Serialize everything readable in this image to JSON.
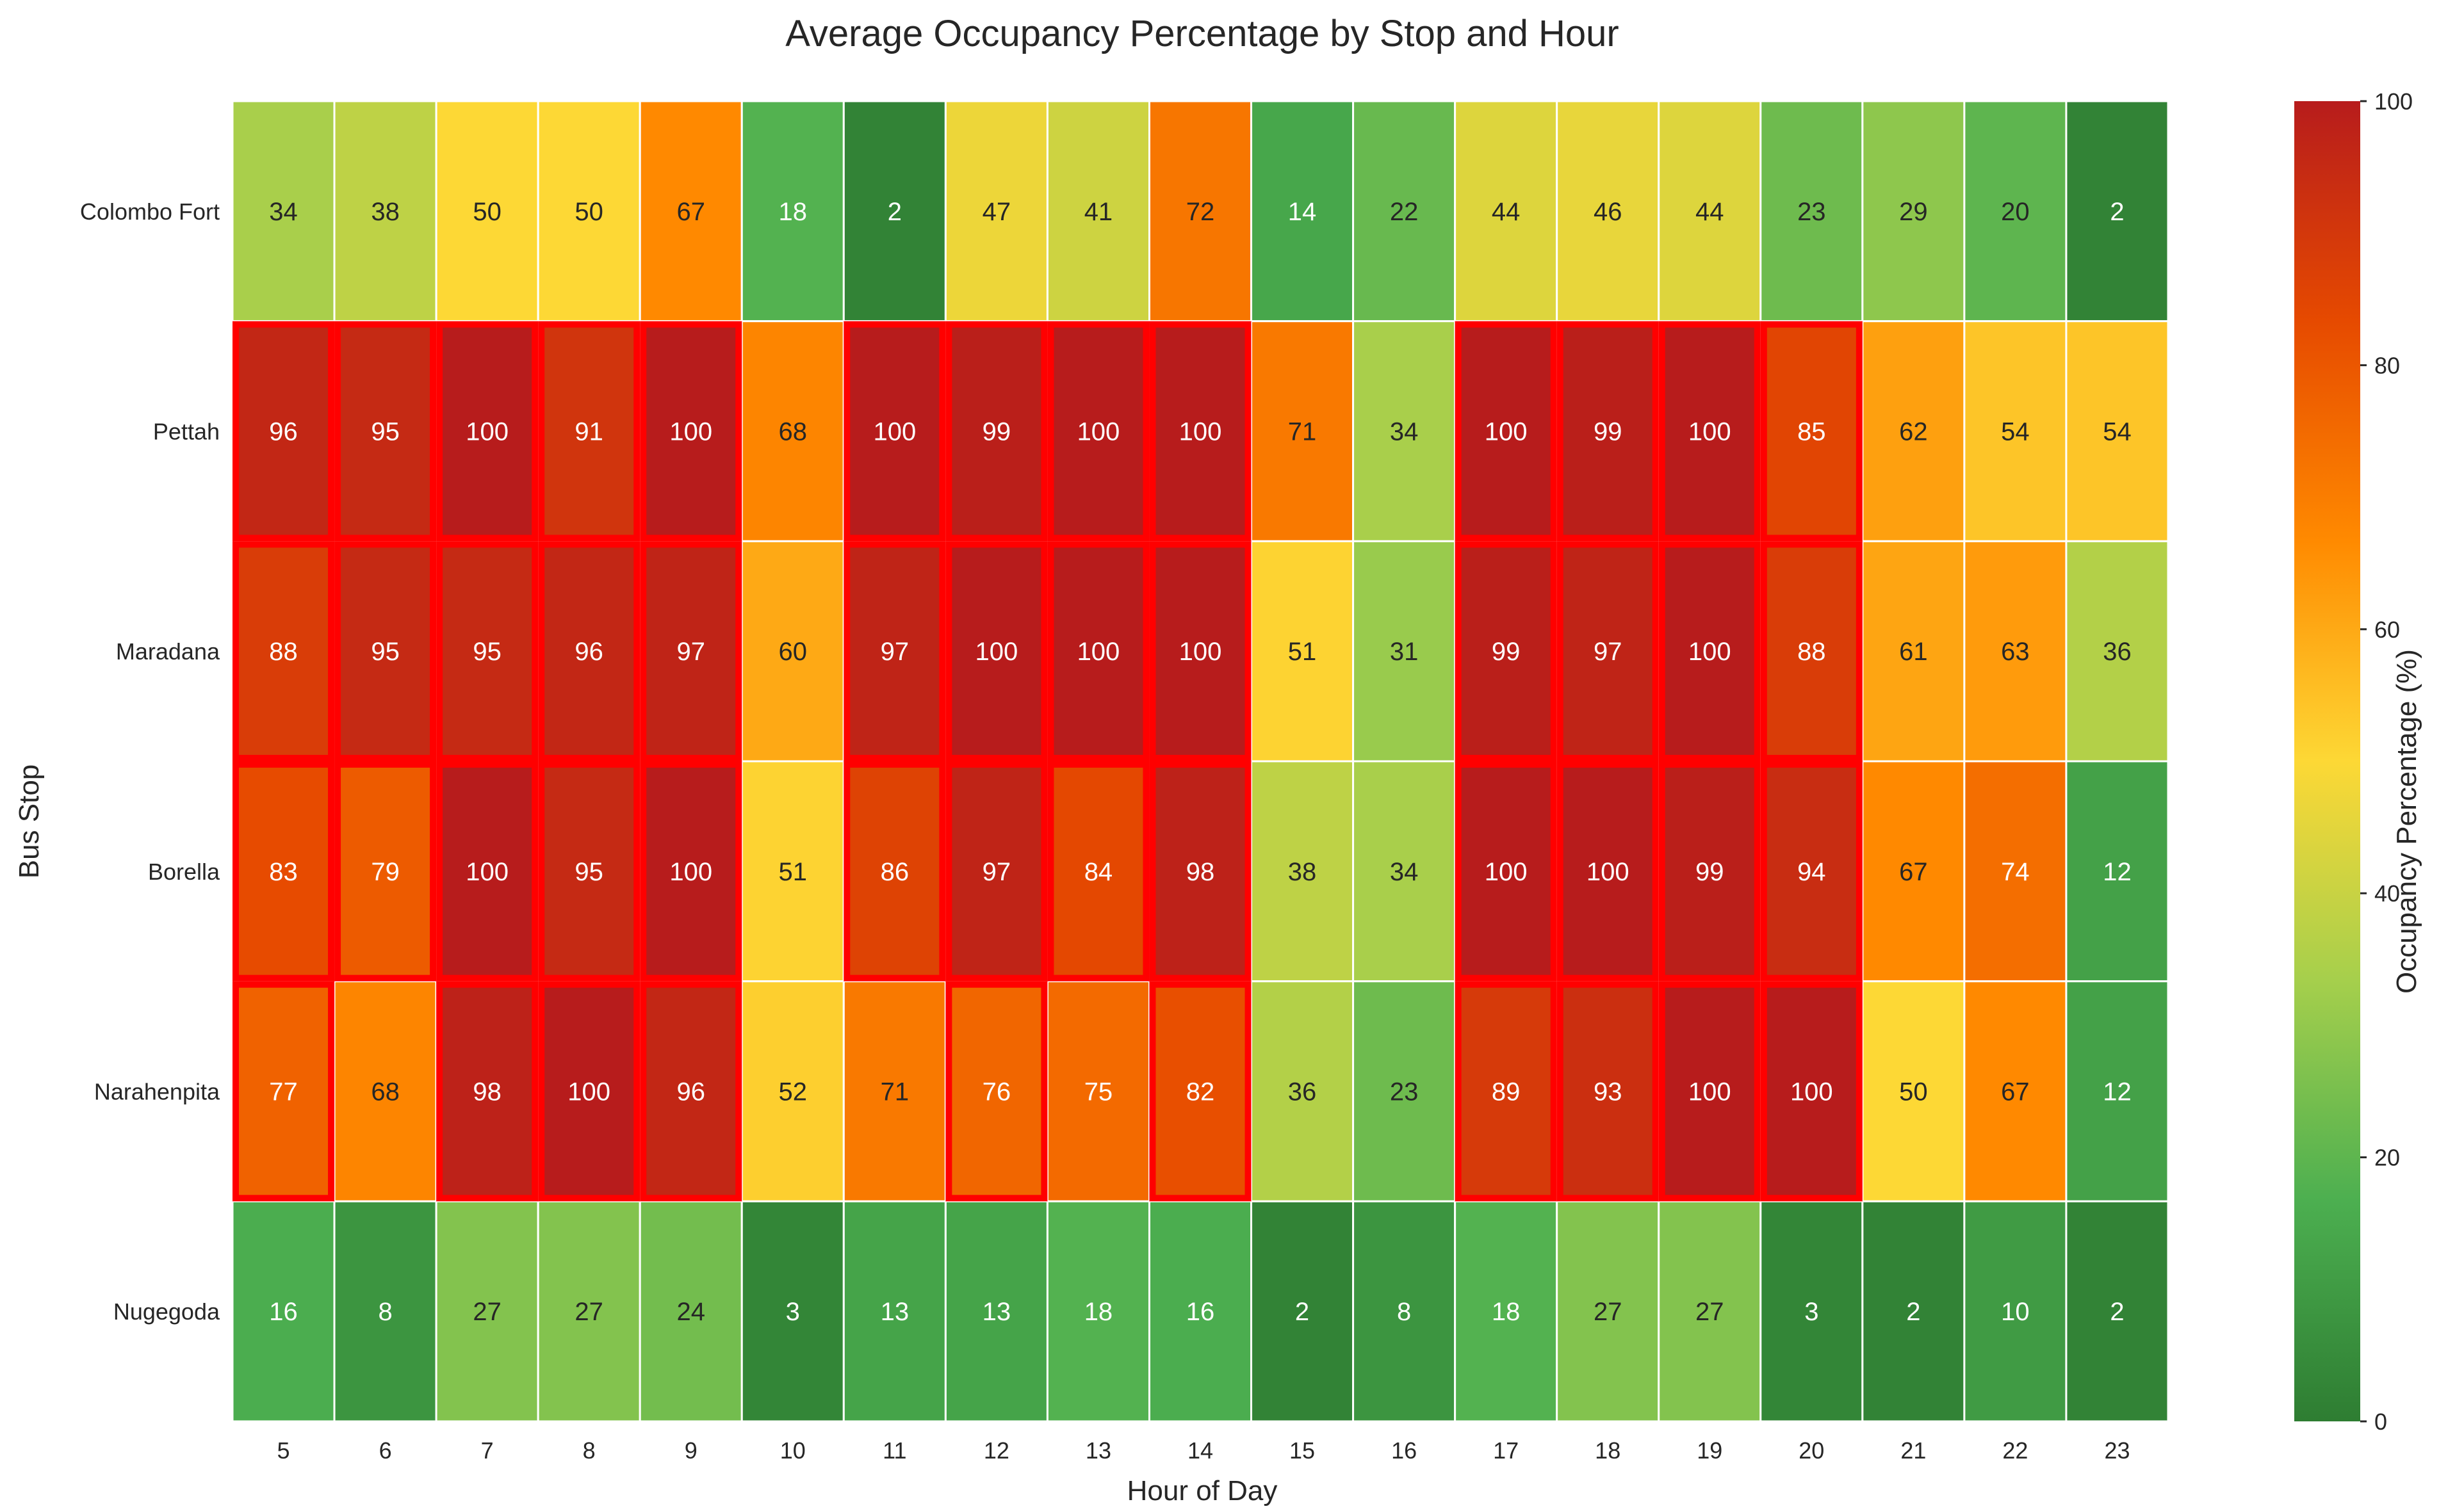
{
  "chart_data": {
    "type": "heatmap",
    "title": "Average Occupancy Percentage by Stop and Hour",
    "xlabel": "Hour of Day",
    "ylabel": "Bus Stop",
    "x_categories": [
      "5",
      "6",
      "7",
      "8",
      "9",
      "10",
      "11",
      "12",
      "13",
      "14",
      "15",
      "16",
      "17",
      "18",
      "19",
      "20",
      "21",
      "22",
      "23"
    ],
    "y_categories": [
      "Colombo Fort",
      "Pettah",
      "Maradana",
      "Borella",
      "Narahenpita",
      "Nugegoda"
    ],
    "values": [
      [
        34,
        38,
        50,
        50,
        67,
        18,
        2,
        47,
        41,
        72,
        14,
        22,
        44,
        46,
        44,
        23,
        29,
        20,
        2
      ],
      [
        96,
        95,
        100,
        91,
        100,
        68,
        100,
        99,
        100,
        100,
        71,
        34,
        100,
        99,
        100,
        85,
        62,
        54,
        54
      ],
      [
        88,
        95,
        95,
        96,
        97,
        60,
        97,
        100,
        100,
        100,
        51,
        31,
        99,
        97,
        100,
        88,
        61,
        63,
        36
      ],
      [
        83,
        79,
        100,
        95,
        100,
        51,
        86,
        97,
        84,
        98,
        38,
        34,
        100,
        100,
        99,
        94,
        67,
        74,
        12
      ],
      [
        77,
        68,
        98,
        100,
        96,
        52,
        71,
        76,
        75,
        82,
        36,
        23,
        89,
        93,
        100,
        100,
        50,
        67,
        12
      ],
      [
        16,
        8,
        27,
        27,
        24,
        3,
        13,
        13,
        18,
        16,
        2,
        8,
        18,
        27,
        27,
        3,
        2,
        10,
        2
      ]
    ],
    "highlight_threshold": 75,
    "highlight_color": "#ff0000",
    "colorbar": {
      "label": "Occupancy Percentage (%)",
      "range": [
        0,
        100
      ],
      "ticks": [
        0,
        20,
        40,
        60,
        80,
        100
      ],
      "colors": [
        "#2e7d32",
        "#4caf50",
        "#a5cf4c",
        "#fdd835",
        "#ff8a00",
        "#e64a00",
        "#b71c1c"
      ]
    }
  }
}
